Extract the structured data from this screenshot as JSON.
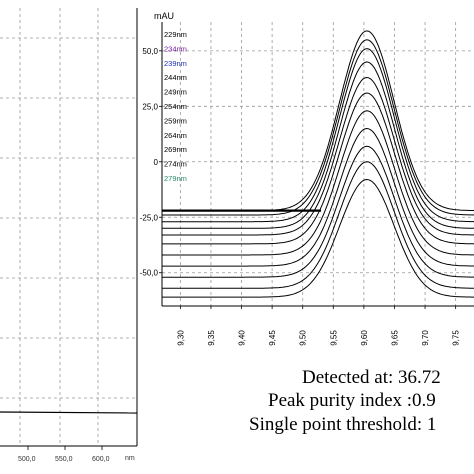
{
  "left_chart": {
    "x_ticks": [
      "500,0",
      "550,0",
      "600,0"
    ],
    "x_unit": "nm"
  },
  "right_chart": {
    "y_unit": "mAU",
    "y_ticks": [
      "50,0",
      "25,0",
      "0",
      "-25,0",
      "-50,0"
    ],
    "x_ticks": [
      "9,30",
      "9,35",
      "9,40",
      "9,45",
      "9,50",
      "9,55",
      "9,60",
      "9,65",
      "9,70",
      "9,75"
    ]
  },
  "chart_data": {
    "type": "line",
    "x_range": [
      9.27,
      9.78
    ],
    "ylim": [
      -65,
      63
    ],
    "peak_center_min": 9.605,
    "peak_width_min": 0.105,
    "series": [
      {
        "name": "229nm",
        "color": "#000000",
        "baseline": -22,
        "apex": 59
      },
      {
        "name": "234nm",
        "color": "#7a1fa0",
        "baseline": -24,
        "apex": 55
      },
      {
        "name": "239nm",
        "color": "#1f2fb0",
        "baseline": -27,
        "apex": 51
      },
      {
        "name": "244nm",
        "color": "#000000",
        "baseline": -30,
        "apex": 45
      },
      {
        "name": "249nm",
        "color": "#000000",
        "baseline": -33,
        "apex": 38
      },
      {
        "name": "254nm",
        "color": "#000000",
        "baseline": -37,
        "apex": 31
      },
      {
        "name": "259nm",
        "color": "#000000",
        "baseline": -42,
        "apex": 23
      },
      {
        "name": "264nm",
        "color": "#000000",
        "baseline": -47,
        "apex": 15
      },
      {
        "name": "269nm",
        "color": "#000000",
        "baseline": -52,
        "apex": 7
      },
      {
        "name": "274nm",
        "color": "#000000",
        "baseline": -57,
        "apex": 0
      },
      {
        "name": "279nm",
        "color": "#2a8a6a",
        "baseline": -61,
        "apex": -8
      }
    ]
  },
  "readouts": {
    "detected": "Detected at: 36.72",
    "purity": "Peak purity index :0.9",
    "threshold": "Single point threshold: 1"
  }
}
